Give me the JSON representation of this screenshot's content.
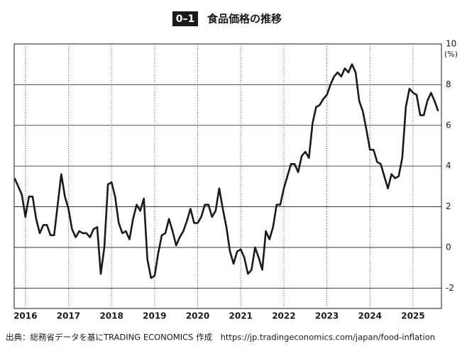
{
  "chart_data": {
    "type": "line",
    "figure_number": "0–1",
    "title": "食品価格の推移",
    "y_unit": "(%)",
    "source": "出典：総務省データを基にTRADING ECONOMICS 作成　https://jp.tradingeconomics.com/japan/food-inflation",
    "color": "#1a1a1a",
    "grid": true,
    "xlim": [
      2015.74,
      2025.66
    ],
    "xticks": [
      2016,
      2017,
      2018,
      2019,
      2020,
      2021,
      2022,
      2023,
      2024,
      2025
    ],
    "ylim": [
      -3,
      10
    ],
    "yticks": [
      10,
      8,
      6,
      4,
      2,
      0,
      -2
    ],
    "x": [
      2015.75,
      2015.833,
      2015.917,
      2016,
      2016.083,
      2016.167,
      2016.25,
      2016.333,
      2016.417,
      2016.5,
      2016.583,
      2016.667,
      2016.75,
      2016.833,
      2016.917,
      2017,
      2017.083,
      2017.167,
      2017.25,
      2017.333,
      2017.417,
      2017.5,
      2017.583,
      2017.667,
      2017.75,
      2017.833,
      2017.917,
      2018,
      2018.083,
      2018.167,
      2018.25,
      2018.333,
      2018.417,
      2018.5,
      2018.583,
      2018.667,
      2018.75,
      2018.833,
      2018.917,
      2019,
      2019.083,
      2019.167,
      2019.25,
      2019.333,
      2019.417,
      2019.5,
      2019.583,
      2019.667,
      2019.75,
      2019.833,
      2019.917,
      2020,
      2020.083,
      2020.167,
      2020.25,
      2020.333,
      2020.417,
      2020.5,
      2020.583,
      2020.667,
      2020.75,
      2020.833,
      2020.917,
      2021,
      2021.083,
      2021.167,
      2021.25,
      2021.333,
      2021.417,
      2021.5,
      2021.583,
      2021.667,
      2021.75,
      2021.833,
      2021.917,
      2022,
      2022.083,
      2022.167,
      2022.25,
      2022.333,
      2022.417,
      2022.5,
      2022.583,
      2022.667,
      2022.75,
      2022.833,
      2022.917,
      2023,
      2023.083,
      2023.167,
      2023.25,
      2023.333,
      2023.417,
      2023.5,
      2023.583,
      2023.667,
      2023.75,
      2023.833,
      2023.917,
      2024,
      2024.083,
      2024.167,
      2024.25,
      2024.333,
      2024.417,
      2024.5,
      2024.583,
      2024.667,
      2024.75,
      2024.833,
      2024.917,
      2025,
      2025.083,
      2025.167,
      2025.25,
      2025.333,
      2025.417,
      2025.5,
      2025.583
    ],
    "values": [
      3.4,
      3.0,
      2.6,
      1.5,
      2.5,
      2.5,
      1.4,
      0.7,
      1.1,
      1.1,
      0.6,
      0.6,
      2.1,
      3.6,
      2.5,
      1.9,
      0.9,
      0.5,
      0.8,
      0.7,
      0.7,
      0.5,
      0.9,
      1.0,
      -1.3,
      0.0,
      3.1,
      3.2,
      2.5,
      1.2,
      0.7,
      0.8,
      0.4,
      1.4,
      2.1,
      1.8,
      2.4,
      -0.6,
      -1.5,
      -1.4,
      -0.3,
      0.6,
      0.7,
      1.4,
      0.8,
      0.1,
      0.5,
      0.8,
      1.3,
      1.9,
      1.2,
      1.2,
      1.5,
      2.1,
      2.1,
      1.5,
      1.8,
      2.9,
      1.9,
      1.0,
      -0.2,
      -0.8,
      -0.2,
      -0.1,
      -0.5,
      -1.3,
      -1.1,
      0.0,
      -0.5,
      -1.1,
      0.8,
      0.4,
      1.0,
      2.1,
      2.1,
      2.9,
      3.5,
      4.1,
      4.1,
      3.7,
      4.5,
      4.7,
      4.4,
      6.1,
      6.9,
      7.0,
      7.3,
      7.5,
      8.0,
      8.4,
      8.6,
      8.4,
      8.8,
      8.6,
      9.0,
      8.6,
      7.2,
      6.7,
      5.8,
      4.8,
      4.8,
      4.2,
      4.1,
      3.5,
      2.9,
      3.6,
      3.4,
      3.5,
      4.4,
      6.9,
      7.8,
      7.6,
      7.5,
      6.5,
      6.5,
      7.2,
      7.6,
      7.2,
      6.7
    ]
  }
}
